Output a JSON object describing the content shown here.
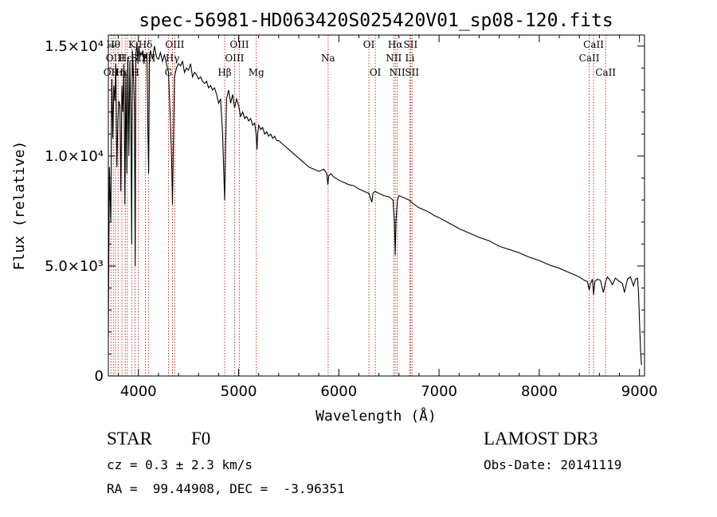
{
  "chart_data": {
    "type": "line",
    "title": "spec-56981-HD063420S025420V01_sp08-120.fits",
    "xlabel": "Wavelength (Å)",
    "ylabel": "Flux (relative)",
    "xlim": [
      3700,
      9050
    ],
    "ylim": [
      0,
      15500
    ],
    "x_ticks": [
      4000,
      5000,
      6000,
      7000,
      8000,
      9000
    ],
    "x_tick_labels": [
      "4000",
      "5000",
      "6000",
      "7000",
      "8000",
      "9000"
    ],
    "y_ticks": [
      0,
      5000,
      10000,
      15000
    ],
    "y_tick_labels": [
      "0",
      "5.0×10³",
      "1.0×10⁴",
      "1.5×10⁴"
    ],
    "series": [
      {
        "name": "spectrum",
        "color": "#000000",
        "x": [
          3700,
          3710,
          3725,
          3735,
          3745,
          3755,
          3765,
          3775,
          3785,
          3795,
          3805,
          3815,
          3825,
          3835,
          3845,
          3855,
          3865,
          3875,
          3885,
          3895,
          3905,
          3915,
          3925,
          3933,
          3940,
          3950,
          3960,
          3968,
          3975,
          3985,
          3995,
          4005,
          4015,
          4025,
          4035,
          4045,
          4055,
          4065,
          4075,
          4085,
          4095,
          4102,
          4110,
          4120,
          4140,
          4160,
          4180,
          4200,
          4220,
          4240,
          4260,
          4280,
          4300,
          4320,
          4330,
          4340,
          4350,
          4360,
          4380,
          4400,
          4420,
          4440,
          4460,
          4480,
          4500,
          4520,
          4540,
          4560,
          4580,
          4600,
          4620,
          4640,
          4660,
          4680,
          4700,
          4720,
          4740,
          4760,
          4780,
          4800,
          4820,
          4840,
          4850,
          4861,
          4870,
          4880,
          4900,
          4920,
          4940,
          4960,
          4980,
          5000,
          5020,
          5040,
          5060,
          5080,
          5100,
          5120,
          5140,
          5160,
          5175,
          5183,
          5190,
          5200,
          5220,
          5240,
          5260,
          5280,
          5300,
          5320,
          5340,
          5360,
          5380,
          5400,
          5450,
          5500,
          5550,
          5600,
          5650,
          5700,
          5750,
          5800,
          5850,
          5880,
          5890,
          5900,
          5920,
          5950,
          6000,
          6050,
          6100,
          6150,
          6200,
          6250,
          6300,
          6330,
          6340,
          6360,
          6400,
          6450,
          6500,
          6540,
          6555,
          6563,
          6570,
          6585,
          6600,
          6650,
          6700,
          6750,
          6800,
          6850,
          6900,
          6950,
          7000,
          7100,
          7200,
          7300,
          7400,
          7500,
          7600,
          7700,
          7800,
          7900,
          8000,
          8100,
          8200,
          8300,
          8400,
          8450,
          8480,
          8498,
          8510,
          8530,
          8542,
          8555,
          8580,
          8610,
          8640,
          8662,
          8680,
          8700,
          8730,
          8760,
          8800,
          8830,
          8850,
          8880,
          8910,
          8940,
          8960,
          8980,
          8990,
          9000,
          9010,
          9020
        ],
        "y": [
          1800,
          9500,
          7000,
          13500,
          10800,
          13200,
          12500,
          14200,
          9500,
          11600,
          12500,
          12300,
          8400,
          13200,
          12000,
          14200,
          7800,
          13800,
          9200,
          14500,
          10000,
          14300,
          11800,
          6000,
          14800,
          13900,
          12200,
          5000,
          14600,
          15200,
          14200,
          15000,
          14500,
          14700,
          14600,
          14800,
          14200,
          14600,
          14500,
          14700,
          11000,
          9200,
          14500,
          14800,
          14400,
          15000,
          14500,
          14400,
          14700,
          14300,
          14600,
          14200,
          13800,
          11500,
          10000,
          7800,
          11000,
          13600,
          14000,
          14200,
          14100,
          14300,
          13800,
          14000,
          13900,
          14200,
          13600,
          13800,
          13700,
          13500,
          13600,
          13400,
          13300,
          13400,
          13100,
          13200,
          13000,
          13100,
          12800,
          12400,
          12600,
          11000,
          9500,
          8000,
          10500,
          12600,
          13000,
          12400,
          12800,
          12200,
          12600,
          12300,
          11800,
          12000,
          11700,
          11800,
          11600,
          11700,
          11400,
          11500,
          11000,
          10300,
          11000,
          11400,
          11200,
          11300,
          11000,
          11100,
          10900,
          11000,
          10800,
          10900,
          10700,
          10700,
          10500,
          10300,
          10100,
          9900,
          9700,
          9500,
          9400,
          9300,
          9400,
          9200,
          8700,
          9100,
          9200,
          9050,
          8900,
          8800,
          8700,
          8650,
          8500,
          8400,
          8300,
          7900,
          8300,
          8400,
          8300,
          8200,
          8150,
          8000,
          7000,
          5500,
          7000,
          8000,
          8200,
          8100,
          8000,
          7800,
          7650,
          7550,
          7450,
          7300,
          7200,
          6950,
          6700,
          6500,
          6300,
          6150,
          5900,
          5750,
          5600,
          5400,
          5250,
          5050,
          4900,
          4700,
          4500,
          4350,
          4300,
          3900,
          4200,
          4400,
          3700,
          4300,
          4400,
          4350,
          3800,
          4300,
          4500,
          4400,
          4150,
          4450,
          4300,
          4200,
          3800,
          4400,
          4500,
          4100,
          4400,
          4450,
          3800,
          2500,
          1200,
          500
        ]
      }
    ],
    "lines_color": "#c0392b",
    "spectral_lines": [
      {
        "wl": 3727,
        "label": "OII",
        "row": 2
      },
      {
        "wl": 3750,
        "label": "Hθ",
        "row": 0
      },
      {
        "wl": 3770,
        "label": "OIII",
        "row": 1
      },
      {
        "wl": 3798,
        "label": "Hη",
        "row": 2
      },
      {
        "wl": 3835,
        "label": "Hε",
        "row": 2
      },
      {
        "wl": 3869,
        "label": "Hε",
        "row": 1
      },
      {
        "wl": 3889,
        "label": "",
        "row": 1
      },
      {
        "wl": 3933,
        "label": "K",
        "row": 0
      },
      {
        "wl": 3968,
        "label": "H",
        "row": 2
      },
      {
        "wl": 4000,
        "label": "SII",
        "row": 1
      },
      {
        "wl": 4070,
        "label": "Hδ",
        "row": 0
      },
      {
        "wl": 4102,
        "label": "SII",
        "row": 1
      },
      {
        "wl": 4300,
        "label": "G",
        "row": 2
      },
      {
        "wl": 4340,
        "label": "Hγ",
        "row": 1
      },
      {
        "wl": 4363,
        "label": "OIII",
        "row": 0
      },
      {
        "wl": 4861,
        "label": "Hβ",
        "row": 2
      },
      {
        "wl": 4959,
        "label": "OIII",
        "row": 1
      },
      {
        "wl": 5007,
        "label": "OIII",
        "row": 0
      },
      {
        "wl": 5176,
        "label": "Mg",
        "row": 2
      },
      {
        "wl": 5893,
        "label": "Na",
        "row": 1
      },
      {
        "wl": 6300,
        "label": "OI",
        "row": 0
      },
      {
        "wl": 6364,
        "label": "OI",
        "row": 2
      },
      {
        "wl": 6548,
        "label": "NII",
        "row": 1
      },
      {
        "wl": 6563,
        "label": "Hα",
        "row": 0
      },
      {
        "wl": 6583,
        "label": "NII",
        "row": 2
      },
      {
        "wl": 6708,
        "label": "Li",
        "row": 1
      },
      {
        "wl": 6716,
        "label": "SII",
        "row": 0
      },
      {
        "wl": 6731,
        "label": "SII",
        "row": 2
      },
      {
        "wl": 8498,
        "label": "CaII",
        "row": 1
      },
      {
        "wl": 8542,
        "label": "CaII",
        "row": 0
      },
      {
        "wl": 8662,
        "label": "CaII",
        "row": 2
      }
    ]
  },
  "info": {
    "object_type": "STAR",
    "subclass": "F0",
    "survey": "LAMOST DR3",
    "cz": "cz = 0.3 ± 2.3 km/s",
    "obs_date": "Obs-Date: 20141119",
    "coords": "RA =  99.44908, DEC =  -3.96351"
  }
}
